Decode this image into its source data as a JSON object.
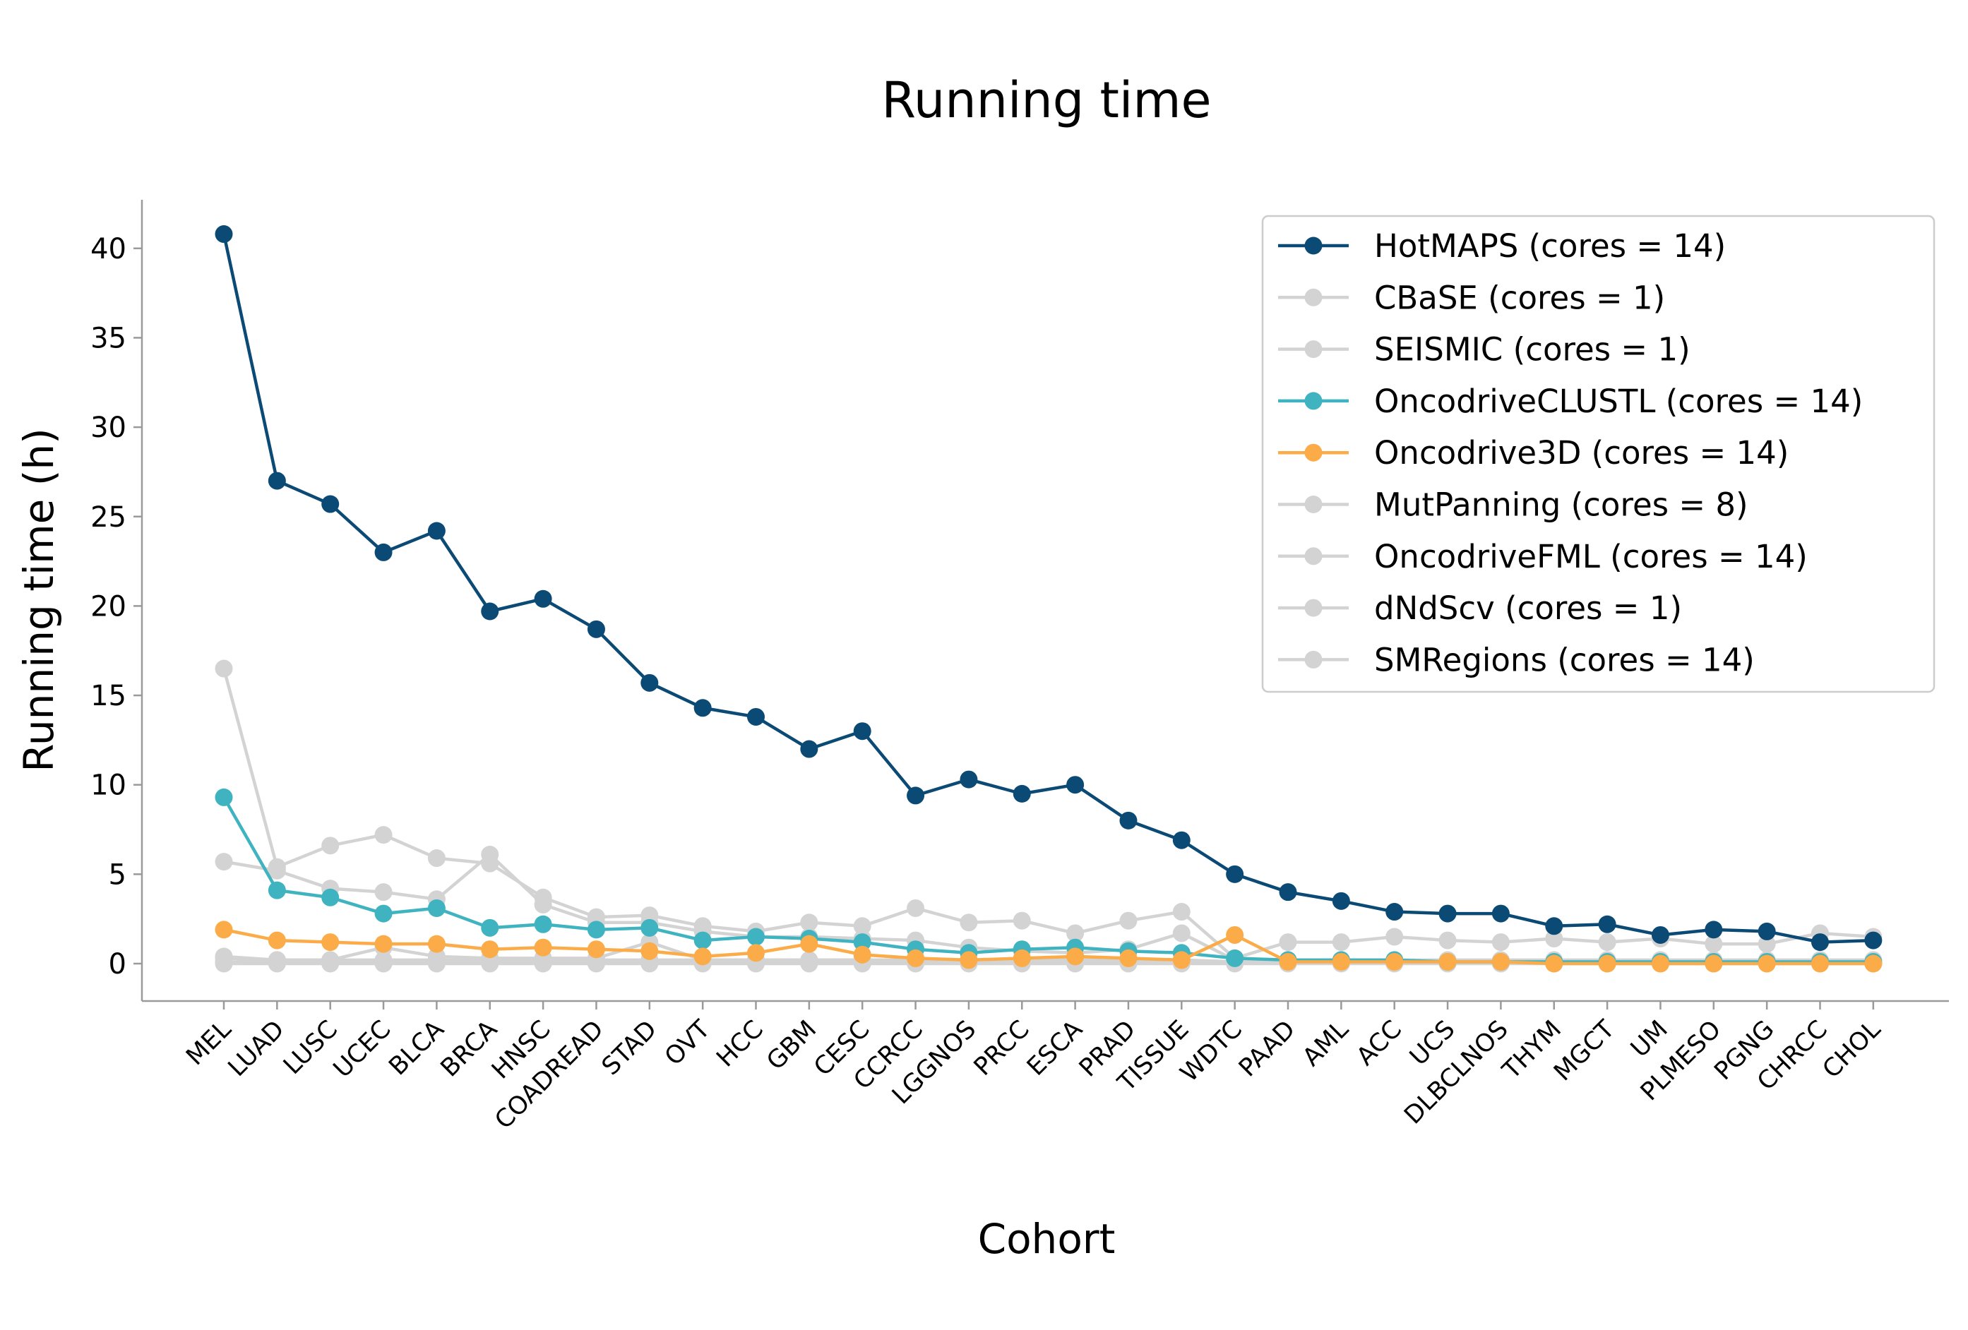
{
  "chart_data": {
    "type": "line",
    "title": "Running time",
    "xlabel": "Cohort",
    "ylabel": "Running time (h)",
    "ylim": [
      -2,
      43
    ],
    "yticks": [
      0,
      5,
      10,
      15,
      20,
      25,
      30,
      35,
      40
    ],
    "grid": false,
    "legend_position": "top-right",
    "categories": [
      "MEL",
      "LUAD",
      "LUSC",
      "UCEC",
      "BLCA",
      "BRCA",
      "HNSC",
      "COADREAD",
      "STAD",
      "OVT",
      "HCC",
      "GBM",
      "CESC",
      "CCRCC",
      "LGGNOS",
      "PRCC",
      "ESCA",
      "PRAD",
      "TISSUE",
      "WDTC",
      "PAAD",
      "AML",
      "ACC",
      "UCS",
      "DLBCLNOS",
      "THYM",
      "MGCT",
      "UM",
      "PLMESO",
      "PGNG",
      "CHRCC",
      "CHOL"
    ],
    "series": [
      {
        "name": "CBaSE (cores = 1)",
        "color": "#d3d3d3",
        "values": [
          16.5,
          5.4,
          6.6,
          7.2,
          5.9,
          5.6,
          3.7,
          2.6,
          2.7,
          2.1,
          1.8,
          2.3,
          2.1,
          3.1,
          2.3,
          2.4,
          1.7,
          2.4,
          2.9,
          0.3,
          1.2,
          1.2,
          1.5,
          1.3,
          1.2,
          1.4,
          1.2,
          1.4,
          1.1,
          1.1,
          1.7,
          1.5
        ]
      },
      {
        "name": "SEISMIC (cores = 1)",
        "color": "#d3d3d3",
        "values": [
          5.7,
          5.2,
          4.2,
          4.0,
          3.6,
          6.1,
          3.3,
          2.3,
          2.3,
          1.8,
          1.5,
          1.5,
          1.4,
          1.3,
          0.9,
          0.7,
          0.6,
          0.8,
          1.7,
          0.2,
          0.2,
          0.2,
          0.2,
          0.2,
          0.2,
          0.2,
          0.2,
          0.2,
          0.2,
          0.2,
          0.2,
          0.2
        ]
      },
      {
        "name": "MutPanning (cores = 8)",
        "color": "#d3d3d3",
        "values": [
          0.4,
          0.2,
          0.2,
          0.9,
          0.4,
          0.3,
          0.3,
          0.3,
          1.2,
          0.2,
          0.2,
          0.2,
          0.2,
          0.2,
          0.2,
          0.2,
          0.2,
          0.2,
          0.2,
          0.1,
          0.1,
          0.1,
          0.1,
          0.1,
          0.1,
          0.1,
          0.1,
          0.1,
          0.1,
          0.1,
          0.1,
          0.1
        ]
      },
      {
        "name": "OncodriveFML (cores = 14)",
        "color": "#d3d3d3",
        "values": [
          0.1,
          0.1,
          0.1,
          0.1,
          0.1,
          0.1,
          0.1,
          0.1,
          0.1,
          0.1,
          0.1,
          0.1,
          0.1,
          0.1,
          0.1,
          0.1,
          0.1,
          0.1,
          0.1,
          0.1,
          0.1,
          0.1,
          0.1,
          0.1,
          0.1,
          0.1,
          0.1,
          0.1,
          0.1,
          0.1,
          0.1,
          0.1
        ]
      },
      {
        "name": "dNdScv (cores = 1)",
        "color": "#d3d3d3",
        "values": [
          0.3,
          0.2,
          0.2,
          0.2,
          0.2,
          0.2,
          0.2,
          0.2,
          0.2,
          0.2,
          0.2,
          0.2,
          0.2,
          0.2,
          0.2,
          0.2,
          0.2,
          0.2,
          0.2,
          0.1,
          0.1,
          0.1,
          0.1,
          0.1,
          0.1,
          0.1,
          0.1,
          0.1,
          0.1,
          0.1,
          0.1,
          0.1
        ]
      },
      {
        "name": "SMRegions (cores = 14)",
        "color": "#d3d3d3",
        "values": [
          0.0,
          0.0,
          0.0,
          0.0,
          0.0,
          0.0,
          0.0,
          0.0,
          0.0,
          0.0,
          0.0,
          0.0,
          0.0,
          0.0,
          0.0,
          0.0,
          0.0,
          0.0,
          0.0,
          0.0,
          0.0,
          0.0,
          0.0,
          0.0,
          0.0,
          0.0,
          0.0,
          0.0,
          0.0,
          0.0,
          0.0,
          0.0
        ]
      },
      {
        "name": "OncodriveCLUSTL (cores = 14)",
        "color": "#3fb4c0",
        "values": [
          9.3,
          4.1,
          3.7,
          2.8,
          3.1,
          2.0,
          2.2,
          1.9,
          2.0,
          1.3,
          1.5,
          1.4,
          1.2,
          0.8,
          0.6,
          0.8,
          0.9,
          0.7,
          0.6,
          0.3,
          0.2,
          0.2,
          0.2,
          0.1,
          0.1,
          0.1,
          0.1,
          0.1,
          0.1,
          0.1,
          0.1,
          0.1
        ]
      },
      {
        "name": "Oncodrive3D (cores = 14)",
        "color": "#fbab47",
        "values": [
          1.9,
          1.3,
          1.2,
          1.1,
          1.1,
          0.8,
          0.9,
          0.8,
          0.7,
          0.4,
          0.6,
          1.1,
          0.5,
          0.3,
          0.2,
          0.3,
          0.4,
          0.3,
          0.2,
          1.6,
          0.1,
          0.1,
          0.1,
          0.1,
          0.1,
          0.0,
          0.0,
          0.0,
          0.0,
          0.0,
          0.0,
          0.0
        ]
      },
      {
        "name": "HotMAPS (cores = 14)",
        "color": "#0b4a75",
        "values": [
          40.8,
          27.0,
          25.7,
          23.0,
          24.2,
          19.7,
          20.4,
          18.7,
          15.7,
          14.3,
          13.8,
          12.0,
          13.0,
          9.4,
          10.3,
          9.5,
          10.0,
          8.0,
          6.9,
          5.0,
          4.0,
          3.5,
          2.9,
          2.8,
          2.8,
          2.1,
          2.2,
          1.6,
          1.9,
          1.8,
          1.2,
          1.3
        ]
      }
    ],
    "legend_order": [
      "HotMAPS (cores = 14)",
      "CBaSE (cores = 1)",
      "SEISMIC (cores = 1)",
      "OncodriveCLUSTL (cores = 14)",
      "Oncodrive3D (cores = 14)",
      "MutPanning (cores = 8)",
      "OncodriveFML (cores = 14)",
      "dNdScv (cores = 1)",
      "SMRegions (cores = 14)"
    ]
  }
}
